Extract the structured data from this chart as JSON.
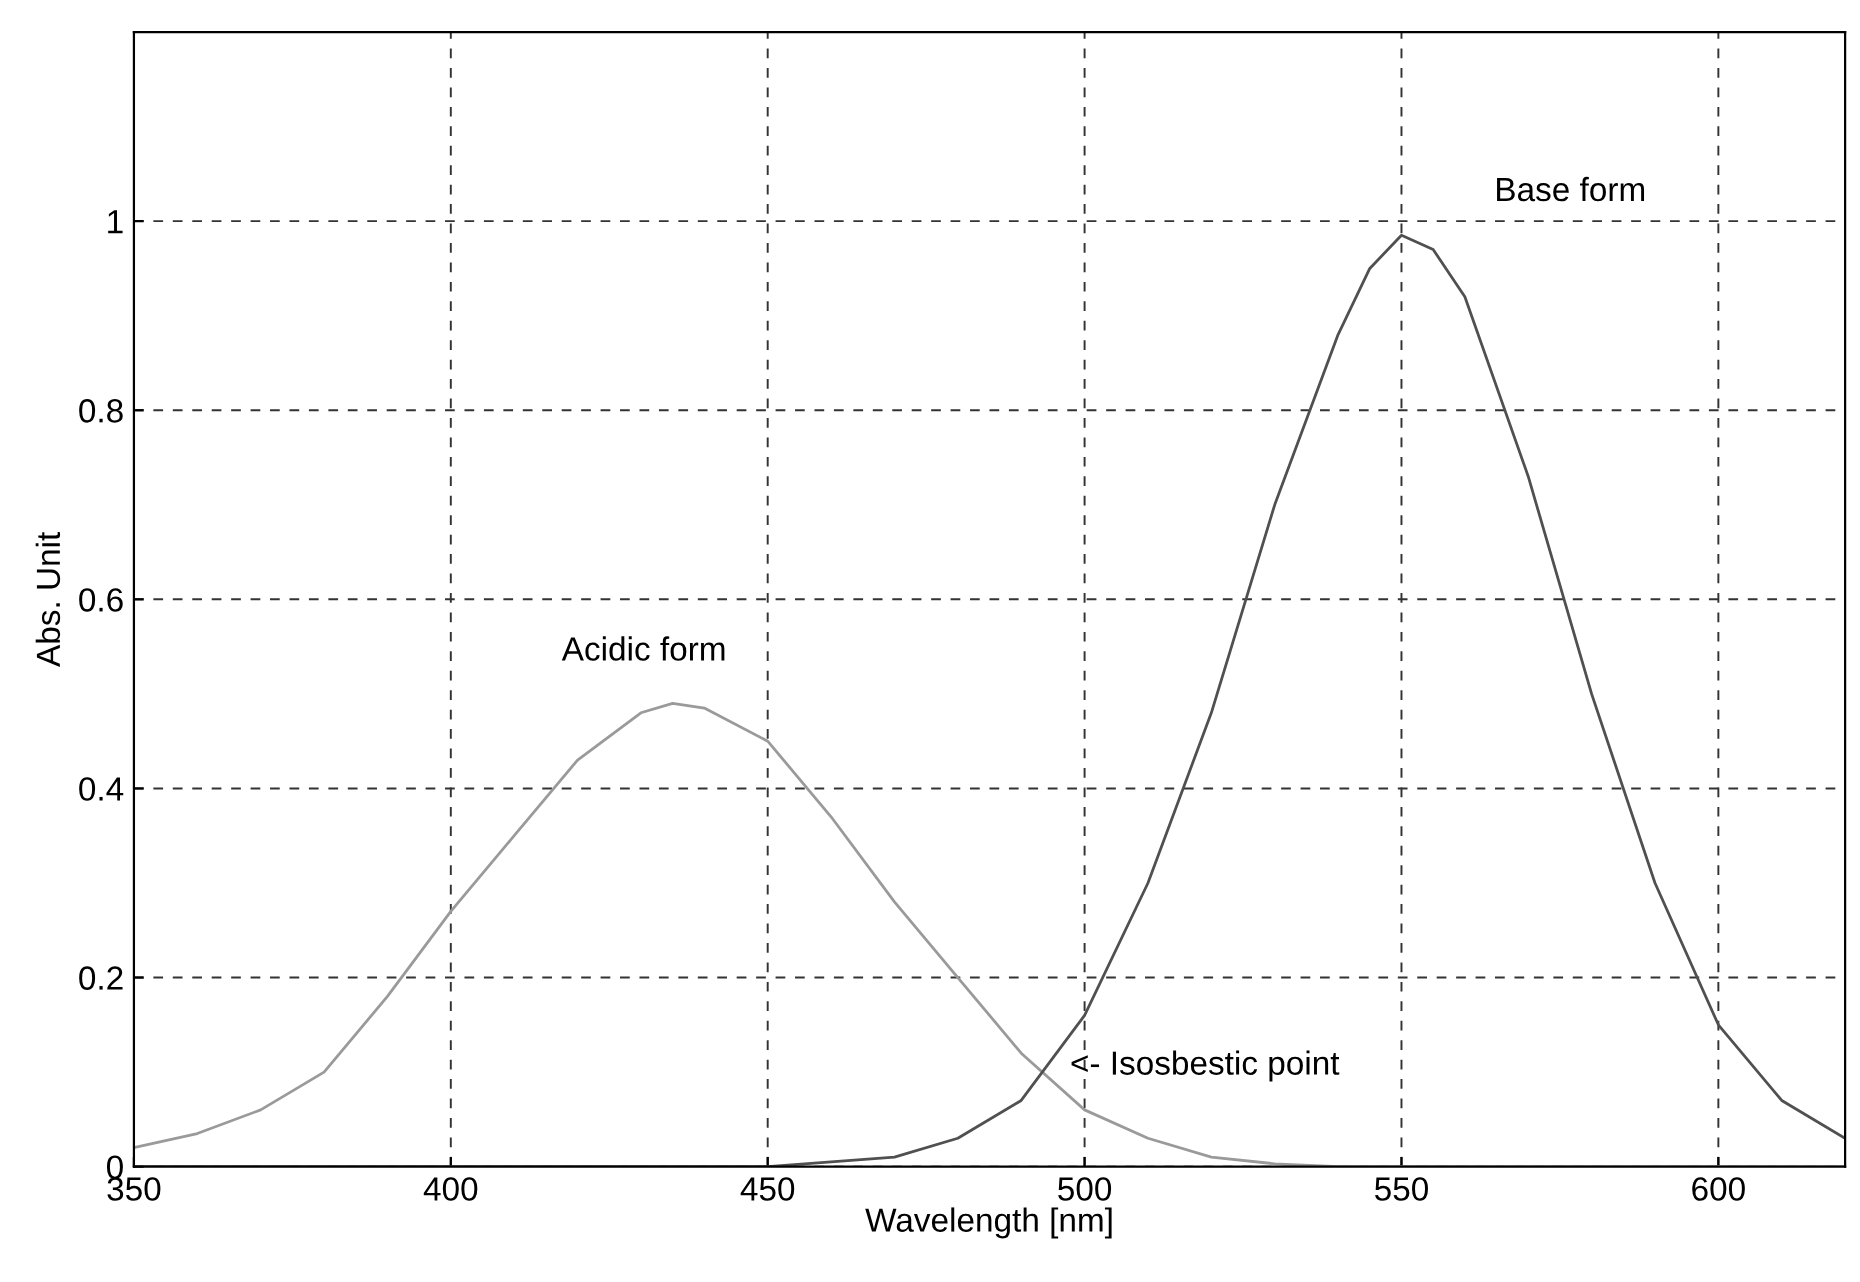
{
  "chart_data": {
    "type": "line",
    "xlabel": "Wavelength [nm]",
    "ylabel": "Abs. Unit",
    "xlim": [
      350,
      620
    ],
    "ylim": [
      0,
      1.2
    ],
    "xticks": [
      350,
      400,
      450,
      500,
      550,
      600
    ],
    "yticks": [
      0,
      0.2,
      0.4,
      0.6,
      0.8,
      1
    ],
    "grid": true,
    "line_style": "solid",
    "marker": "none",
    "series": [
      {
        "color": "#9a9a9a",
        "x": [
          350,
          360,
          370,
          380,
          390,
          400,
          410,
          420,
          430,
          435,
          440,
          450,
          460,
          470,
          480,
          490,
          500,
          510,
          520,
          530,
          540,
          550,
          560,
          570,
          580,
          590,
          600,
          610,
          620
        ],
        "values": [
          0.02,
          0.035,
          0.06,
          0.1,
          0.18,
          0.27,
          0.35,
          0.43,
          0.48,
          0.49,
          0.485,
          0.45,
          0.37,
          0.28,
          0.2,
          0.12,
          0.06,
          0.03,
          0.01,
          0.003,
          0,
          0,
          0,
          0,
          0,
          0,
          0,
          0,
          0
        ]
      },
      {
        "color": "#505050",
        "x": [
          350,
          400,
          450,
          460,
          470,
          480,
          490,
          500,
          510,
          520,
          530,
          540,
          545,
          550,
          555,
          560,
          570,
          580,
          590,
          600,
          610,
          620
        ],
        "values": [
          0,
          0,
          0,
          0.005,
          0.01,
          0.03,
          0.07,
          0.16,
          0.3,
          0.48,
          0.7,
          0.88,
          0.95,
          0.985,
          0.97,
          0.92,
          0.73,
          0.5,
          0.3,
          0.15,
          0.07,
          0.03
        ]
      }
    ],
    "annotations": [
      "Acidic form",
      "Base form",
      "<- Isosbestic point"
    ]
  }
}
